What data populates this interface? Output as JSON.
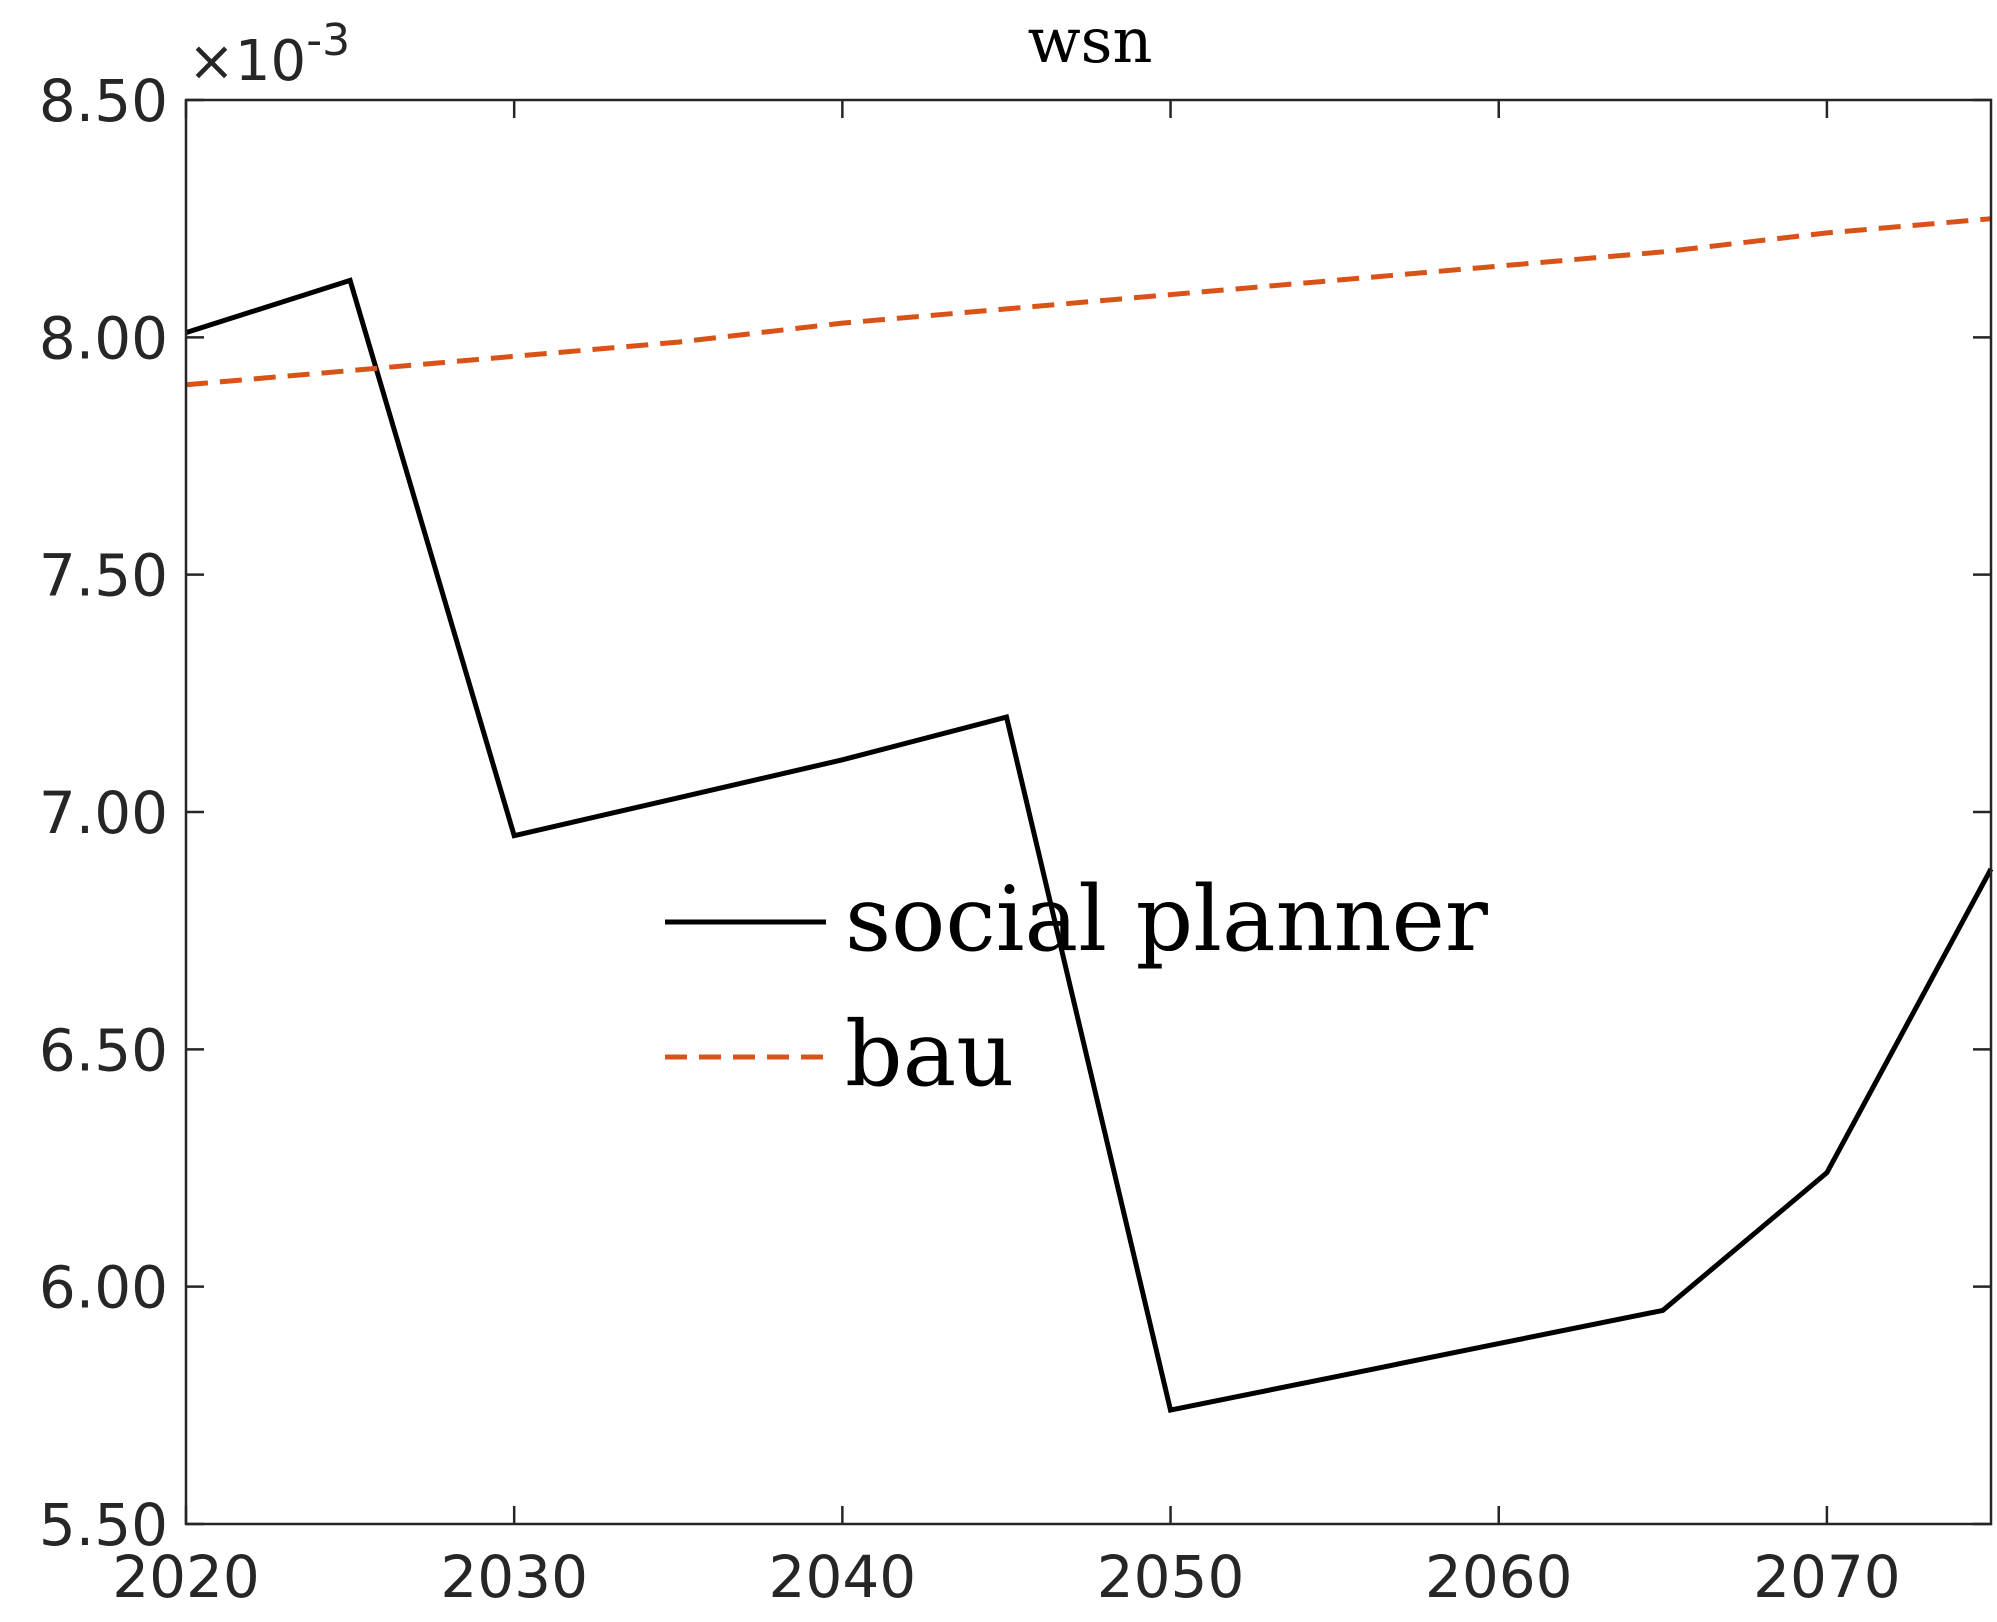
{
  "chart_data": {
    "type": "line",
    "title": "wsn",
    "xlabel": "",
    "ylabel": "",
    "x_ticks": [
      "2020",
      "2030",
      "2040",
      "2050",
      "2060",
      "2070"
    ],
    "y_ticks": [
      "5.50",
      "6.00",
      "6.50",
      "7.00",
      "7.50",
      "8.00",
      "8.50"
    ],
    "y_exponent": {
      "prefix": "×10",
      "power": "-3"
    },
    "xlim": [
      2020,
      2075
    ],
    "ylim": [
      5.5,
      8.5
    ],
    "grid": false,
    "legend_position": "center",
    "series": [
      {
        "name": "social planner",
        "color": "#000000",
        "style": "solid",
        "x": [
          2020,
          2025,
          2030,
          2035,
          2040,
          2045,
          2050,
          2055,
          2060,
          2065,
          2070,
          2075
        ],
        "y": [
          8.01,
          8.12,
          6.95,
          7.03,
          7.11,
          7.2,
          5.74,
          5.81,
          5.88,
          5.95,
          6.24,
          6.88
        ]
      },
      {
        "name": "bau",
        "color": "#D95319",
        "style": "dashed",
        "x": [
          2020,
          2025,
          2030,
          2035,
          2040,
          2045,
          2050,
          2055,
          2060,
          2065,
          2070,
          2075
        ],
        "y": [
          7.9,
          7.93,
          7.96,
          7.99,
          8.03,
          8.06,
          8.09,
          8.12,
          8.15,
          8.18,
          8.22,
          8.25
        ]
      }
    ]
  }
}
